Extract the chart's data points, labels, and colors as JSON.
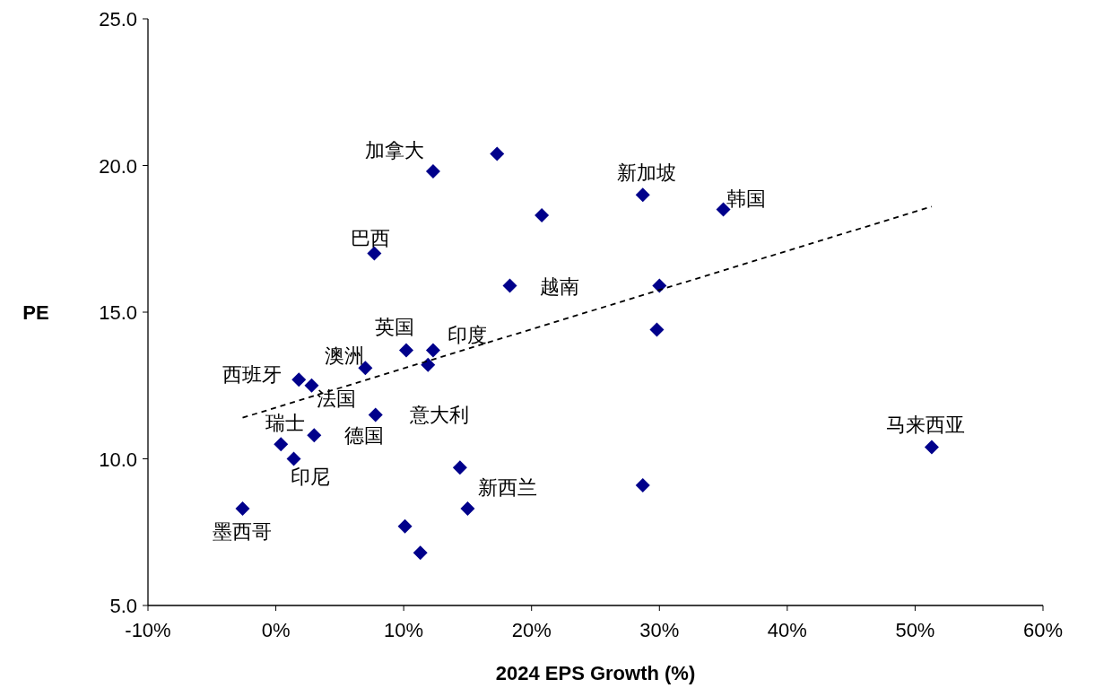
{
  "chart_data": {
    "type": "scatter",
    "xlabel": "2024 EPS Growth (%)",
    "ylabel": "PE",
    "xlim": [
      -10,
      60
    ],
    "ylim": [
      5,
      25
    ],
    "xticks": [
      {
        "value": -10,
        "label": "-10%"
      },
      {
        "value": 0,
        "label": "0%"
      },
      {
        "value": 10,
        "label": "10%"
      },
      {
        "value": 20,
        "label": "20%"
      },
      {
        "value": 30,
        "label": "30%"
      },
      {
        "value": 40,
        "label": "40%"
      },
      {
        "value": 50,
        "label": "50%"
      },
      {
        "value": 60,
        "label": "60%"
      }
    ],
    "yticks": [
      {
        "value": 5,
        "label": "5.0"
      },
      {
        "value": 10,
        "label": "10.0"
      },
      {
        "value": 15,
        "label": "15.0"
      },
      {
        "value": 20,
        "label": "20.0"
      },
      {
        "value": 25,
        "label": "25.0"
      }
    ],
    "series": [
      {
        "marker": "diamond",
        "color": "#00008b",
        "x": [
          12.3,
          17.3,
          28.7,
          35.0,
          20.8,
          7.7,
          18.3,
          30.0,
          29.8,
          10.2,
          12.3,
          7.0,
          11.9,
          1.8,
          2.8,
          7.8,
          3.0,
          0.4,
          1.4,
          14.4,
          28.7,
          15.0,
          -2.6,
          10.1,
          11.3,
          51.3
        ],
        "values": [
          19.8,
          20.4,
          19.0,
          18.5,
          18.3,
          17.0,
          15.9,
          15.9,
          14.4,
          13.7,
          13.7,
          13.1,
          13.2,
          12.7,
          12.5,
          11.5,
          10.8,
          10.5,
          10.0,
          9.7,
          9.1,
          8.3,
          8.3,
          7.7,
          6.8,
          10.4
        ]
      },
      {
        "type": "line",
        "color": "#000000",
        "line_style": "dashed",
        "x": [
          -2.6,
          51.3
        ],
        "values": [
          11.4,
          18.6
        ]
      }
    ],
    "annotations": [
      {
        "text": "加拿大",
        "x": 12.3,
        "y": 19.8
      },
      {
        "text": "新加坡",
        "x": 28.7,
        "y": 19.0
      },
      {
        "text": "韩国",
        "x": 35.0,
        "y": 18.5
      },
      {
        "text": "巴西",
        "x": 7.7,
        "y": 17.0
      },
      {
        "text": "越南",
        "x": 18.3,
        "y": 15.9
      },
      {
        "text": "英国",
        "x": 10.2,
        "y": 13.7
      },
      {
        "text": "印度",
        "x": 12.3,
        "y": 13.7
      },
      {
        "text": "澳洲",
        "x": 7.0,
        "y": 13.1
      },
      {
        "text": "西班牙",
        "x": 1.8,
        "y": 12.7
      },
      {
        "text": "法国",
        "x": 2.8,
        "y": 12.5
      },
      {
        "text": "意大利",
        "x": 7.8,
        "y": 11.5
      },
      {
        "text": "德国",
        "x": 3.0,
        "y": 10.8
      },
      {
        "text": "瑞士",
        "x": 0.4,
        "y": 10.5
      },
      {
        "text": "印尼",
        "x": 1.4,
        "y": 10.0
      },
      {
        "text": "新西兰",
        "x": 15.0,
        "y": 8.3
      },
      {
        "text": "墨西哥",
        "x": -2.6,
        "y": 8.3
      },
      {
        "text": "马来西亚",
        "x": 51.3,
        "y": 10.4
      }
    ]
  }
}
